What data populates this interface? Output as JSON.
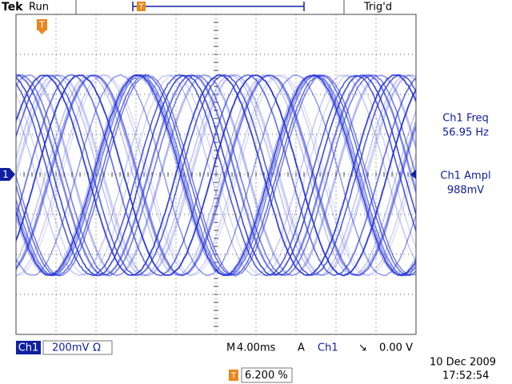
{
  "header": {
    "brand": "Tek",
    "status": "Run",
    "trigger_position_marker": "T",
    "trigger_state": "Trig'd"
  },
  "screen": {
    "trigger_marker": "T",
    "channel_marker": "1"
  },
  "measurements": [
    {
      "label": "Ch1 Freq",
      "value": "56.95 Hz"
    },
    {
      "label": "Ch1 Ampl",
      "value": "988mV"
    }
  ],
  "footer": {
    "channel": "Ch1",
    "scale": "200mV",
    "coupling": "Ω",
    "timebase_prefix": "M",
    "timebase": "4.00ms",
    "trigger_mode": "A",
    "trigger_source": "Ch1",
    "trigger_slope": "↘",
    "trigger_level": "0.00 V",
    "position_marker": "T",
    "position": "6.200 %",
    "date": "10 Dec 2009",
    "time": "17:52:54"
  }
}
